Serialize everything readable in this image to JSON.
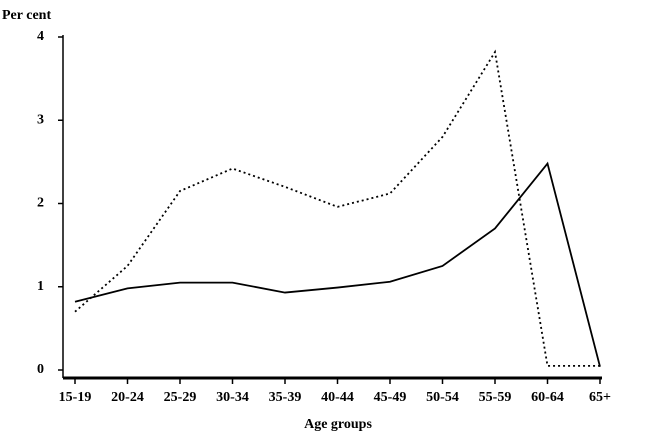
{
  "chart_data": {
    "type": "line",
    "y_label": "Per cent",
    "x_label": "Age groups",
    "categories": [
      "15-19",
      "20-24",
      "25-29",
      "30-34",
      "35-39",
      "40-44",
      "45-49",
      "50-54",
      "55-59",
      "60-64",
      "65+"
    ],
    "series": [
      {
        "color": "#000000",
        "line_style": "solid",
        "values": [
          0.82,
          0.98,
          1.05,
          1.05,
          0.93,
          0.99,
          1.06,
          1.25,
          1.7,
          2.48,
          0.04
        ]
      },
      {
        "color": "#000000",
        "line_style": "dotted",
        "values": [
          0.7,
          1.25,
          2.15,
          2.42,
          2.2,
          1.96,
          2.12,
          2.8,
          3.82,
          0.05,
          0.05
        ]
      }
    ],
    "ylim": [
      0,
      4
    ],
    "yticks": [
      0,
      1,
      2,
      3,
      4
    ],
    "grid": false
  }
}
